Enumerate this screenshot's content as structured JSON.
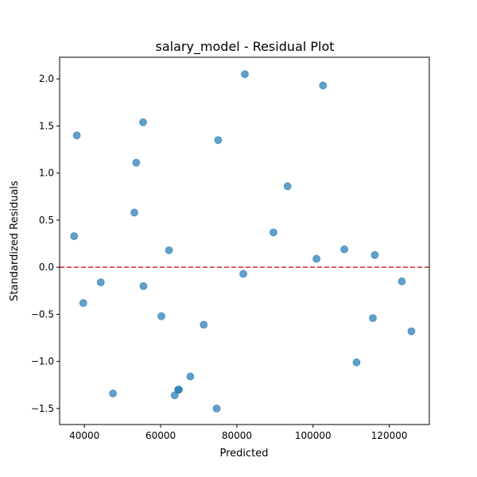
{
  "chart_data": {
    "type": "scatter",
    "title": "salary_model - Residual Plot",
    "xlabel": "Predicted",
    "ylabel": "Standardized Residuals",
    "xlim": [
      33500,
      130500
    ],
    "ylim": [
      -1.67,
      2.23
    ],
    "xticks": [
      40000,
      60000,
      80000,
      100000,
      120000
    ],
    "xtick_labels": [
      "40000",
      "60000",
      "80000",
      "100000",
      "120000"
    ],
    "yticks": [
      -1.5,
      -1.0,
      -0.5,
      0.0,
      0.5,
      1.0,
      1.5,
      2.0
    ],
    "ytick_labels": [
      "−1.5",
      "−1.0",
      "−0.5",
      "0.0",
      "0.5",
      "1.0",
      "1.5",
      "2.0"
    ],
    "grid": false,
    "reference_line": {
      "y": 0,
      "color": "#d62728",
      "style": "dashed"
    },
    "point_color": "#1f77b4",
    "points": [
      {
        "x": 37300,
        "y": 0.33
      },
      {
        "x": 38000,
        "y": 1.4
      },
      {
        "x": 39700,
        "y": -0.38
      },
      {
        "x": 44300,
        "y": -0.16
      },
      {
        "x": 47500,
        "y": -1.34
      },
      {
        "x": 53100,
        "y": 0.58
      },
      {
        "x": 53600,
        "y": 1.11
      },
      {
        "x": 55400,
        "y": 1.54
      },
      {
        "x": 55500,
        "y": -0.2
      },
      {
        "x": 60200,
        "y": -0.52
      },
      {
        "x": 62200,
        "y": 0.18
      },
      {
        "x": 63700,
        "y": -1.36
      },
      {
        "x": 64600,
        "y": -1.3
      },
      {
        "x": 64800,
        "y": -1.3
      },
      {
        "x": 67800,
        "y": -1.16
      },
      {
        "x": 71300,
        "y": -0.61
      },
      {
        "x": 74700,
        "y": -1.5
      },
      {
        "x": 75100,
        "y": 1.35
      },
      {
        "x": 81700,
        "y": -0.07
      },
      {
        "x": 82100,
        "y": 2.05
      },
      {
        "x": 89600,
        "y": 0.37
      },
      {
        "x": 93300,
        "y": 0.86
      },
      {
        "x": 100900,
        "y": 0.09
      },
      {
        "x": 102600,
        "y": 1.93
      },
      {
        "x": 108200,
        "y": 0.19
      },
      {
        "x": 111400,
        "y": -1.01
      },
      {
        "x": 115700,
        "y": -0.54
      },
      {
        "x": 116200,
        "y": 0.13
      },
      {
        "x": 123300,
        "y": -0.15
      },
      {
        "x": 125800,
        "y": -0.68
      }
    ]
  }
}
